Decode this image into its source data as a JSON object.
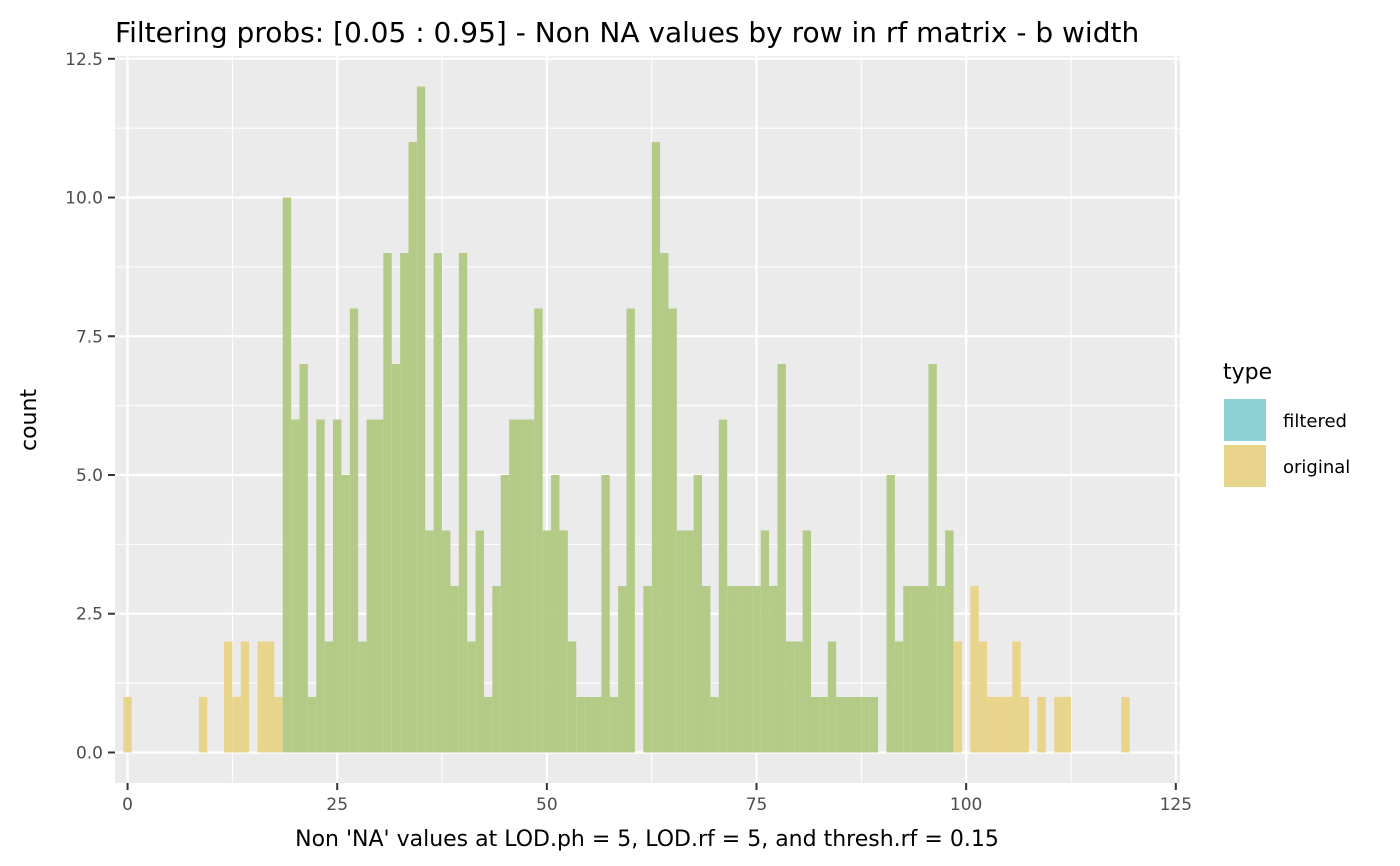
{
  "chart_data": {
    "type": "bar",
    "title": "Filtering probs: [0.05 : 0.95] - Non NA values by row in rf matrix - b width",
    "xlabel": "Non 'NA' values at LOD.ph = 5, LOD.rf = 5, and thresh.rf = 0.15",
    "ylabel": "count",
    "xlim": [
      -1.5,
      125.5
    ],
    "ylim": [
      -0.55,
      12.55
    ],
    "x_ticks": [
      0,
      25,
      50,
      75,
      100,
      125
    ],
    "x_tick_labels": [
      "0",
      "25",
      "50",
      "75",
      "100",
      "125"
    ],
    "y_ticks": [
      0,
      2.5,
      5,
      7.5,
      10,
      12.5
    ],
    "y_tick_labels": [
      "0.0",
      "2.5",
      "5.0",
      "7.5",
      "10.0",
      "12.5"
    ],
    "bin_width": 1,
    "grid": true,
    "legend": {
      "title": "type",
      "placement": "right",
      "entries": [
        {
          "label": "filtered",
          "color": "#8ed1d6"
        },
        {
          "label": "original",
          "color": "#e9d48b"
        }
      ]
    },
    "series": [
      {
        "name": "original",
        "color": "#e9d48b",
        "x": [
          0,
          9,
          12,
          13,
          14,
          16,
          17,
          18,
          99,
          101,
          102,
          103,
          104,
          105,
          106,
          107,
          109,
          111,
          112,
          119
        ],
        "values": [
          1,
          1,
          2,
          1,
          2,
          2,
          2,
          1,
          2,
          3,
          2,
          1,
          1,
          1,
          2,
          1,
          1,
          1,
          1,
          1
        ]
      },
      {
        "name": "filtered",
        "color": "#8ed1d6",
        "x": [
          19,
          20,
          21,
          22,
          23,
          24,
          25,
          26,
          27,
          28,
          29,
          30,
          31,
          32,
          33,
          34,
          35,
          36,
          37,
          38,
          39,
          40,
          41,
          42,
          43,
          44,
          45,
          46,
          47,
          48,
          49,
          50,
          51,
          52,
          53,
          54,
          55,
          56,
          57,
          58,
          59,
          60,
          62,
          63,
          64,
          65,
          66,
          67,
          68,
          69,
          70,
          71,
          72,
          73,
          74,
          75,
          76,
          77,
          78,
          79,
          80,
          81,
          82,
          83,
          84,
          85,
          86,
          87,
          88,
          89,
          91,
          92,
          93,
          94,
          95,
          96,
          97,
          98
        ],
        "values": [
          10,
          6,
          7,
          1,
          6,
          2,
          6,
          5,
          8,
          2,
          6,
          6,
          9,
          7,
          9,
          11,
          12,
          4,
          9,
          4,
          3,
          9,
          2,
          4,
          1,
          3,
          5,
          6,
          6,
          6,
          8,
          4,
          5,
          4,
          2,
          1,
          1,
          1,
          5,
          1,
          3,
          8,
          3,
          11,
          9,
          8,
          4,
          4,
          5,
          3,
          1,
          6,
          3,
          3,
          3,
          3,
          4,
          3,
          7,
          2,
          2,
          4,
          1,
          1,
          2,
          1,
          1,
          1,
          1,
          1,
          5,
          2,
          3,
          3,
          3,
          7,
          3,
          4
        ]
      }
    ],
    "overlap_color": "#b3cb87"
  }
}
